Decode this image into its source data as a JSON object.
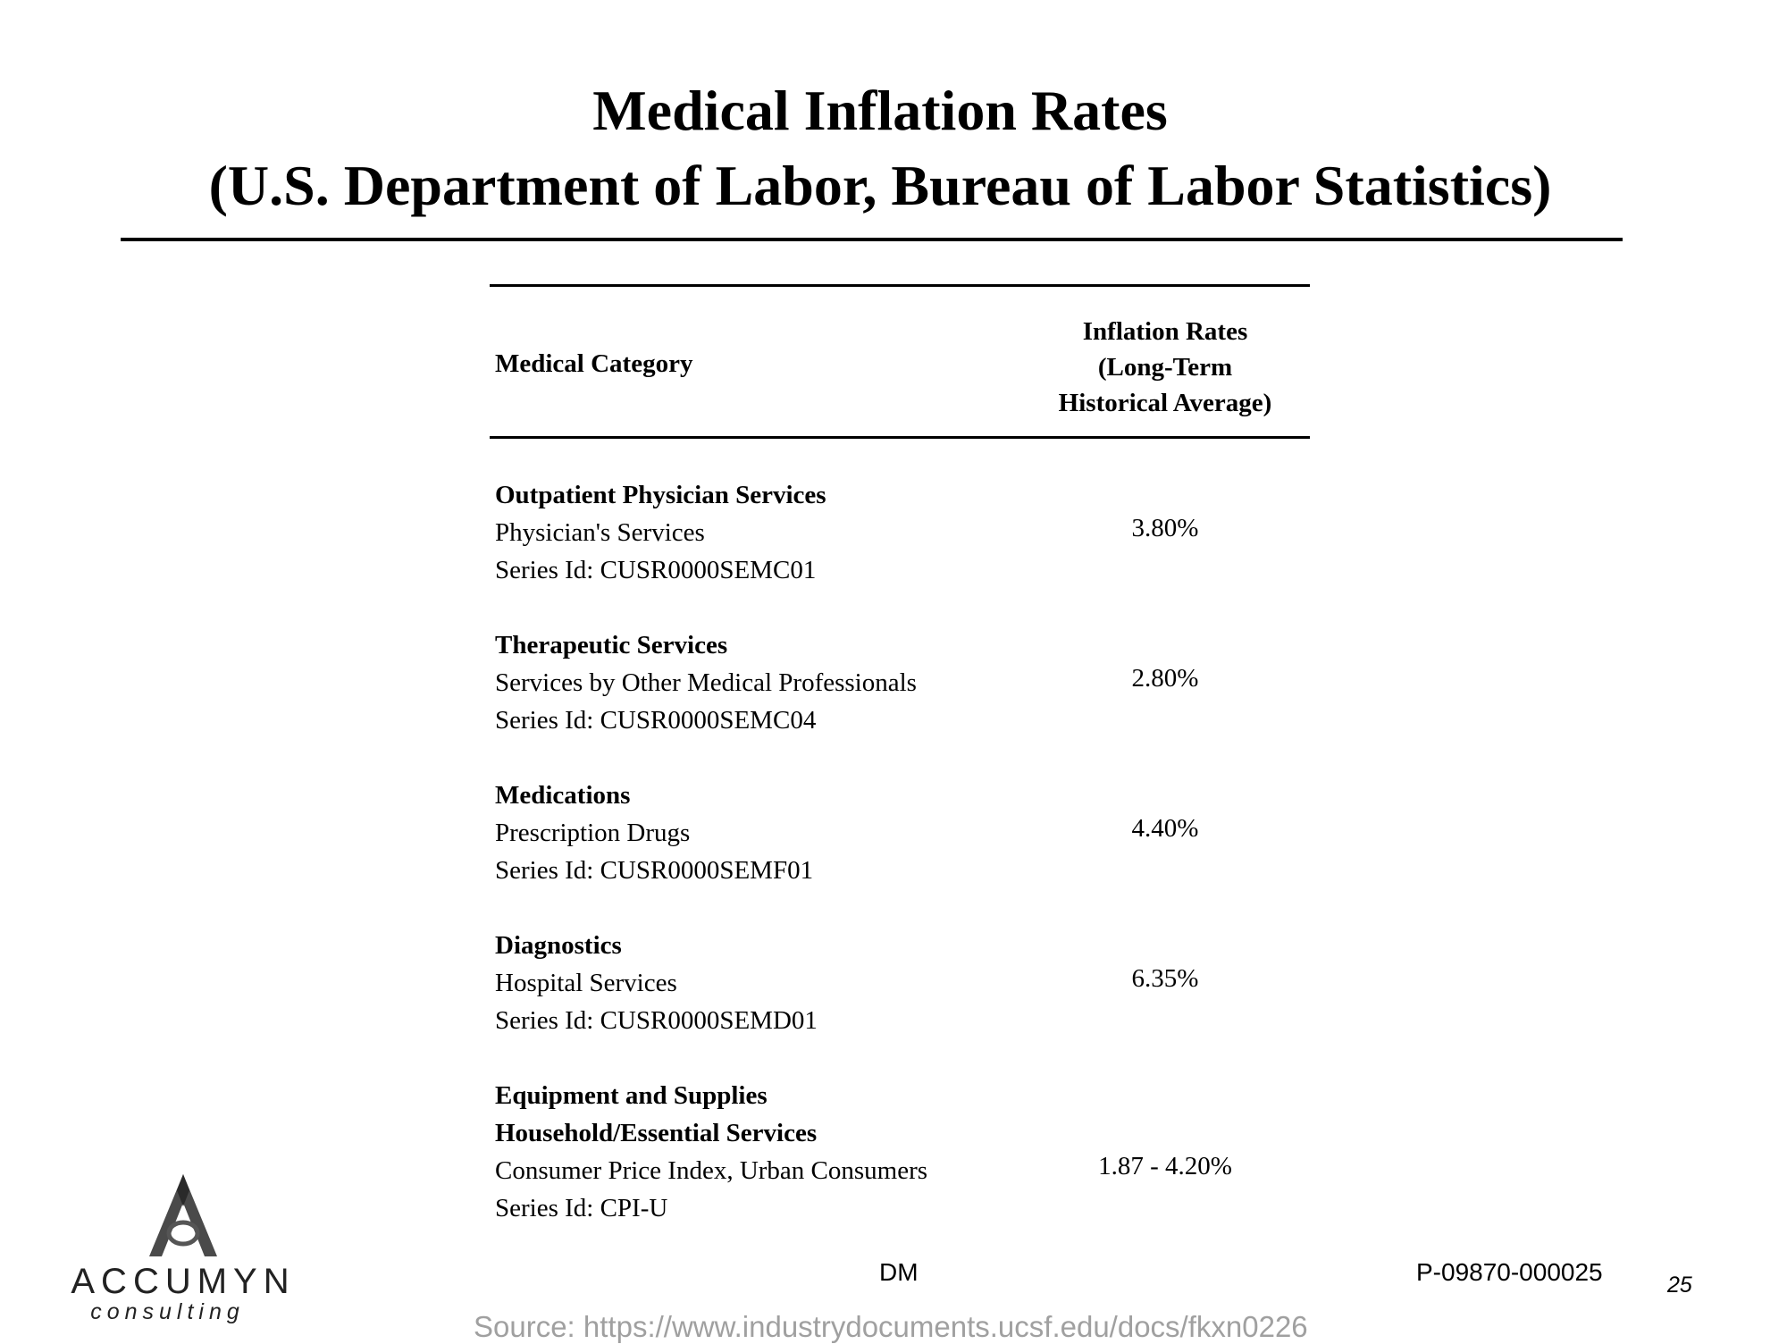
{
  "title": {
    "line1": "Medical Inflation Rates",
    "line2": "(U.S. Department of Labor, Bureau of Labor Statistics)"
  },
  "table": {
    "header": {
      "category": "Medical Category",
      "rate_line1": "Inflation Rates",
      "rate_line2": "(Long-Term",
      "rate_line3": "Historical Average)"
    },
    "rows": [
      {
        "title": "Outpatient Physician Services",
        "line1": "Physician's Services",
        "line2": "Series Id: CUSR0000SEMC01",
        "rate": "3.80%"
      },
      {
        "title": "Therapeutic Services",
        "line1": "Services by Other Medical Professionals",
        "line2": "Series Id: CUSR0000SEMC04",
        "rate": "2.80%"
      },
      {
        "title": "Medications",
        "line1": "Prescription Drugs",
        "line2": "Series Id: CUSR0000SEMF01",
        "rate": "4.40%"
      },
      {
        "title": "Diagnostics",
        "line1": "Hospital Services",
        "line2": "Series Id: CUSR0000SEMD01",
        "rate": "6.35%"
      },
      {
        "title": "Equipment and Supplies",
        "title2": "Household/Essential Services",
        "line1": "Consumer Price Index, Urban Consumers",
        "line2": "Series Id: CPI-U",
        "rate": "1.87 - 4.20%"
      }
    ]
  },
  "footer": {
    "dm": "DM",
    "code": "P-09870-000025",
    "page_number": "25",
    "source": "Source: https://www.industrydocuments.ucsf.edu/docs/fkxn0226"
  },
  "logo": {
    "name": "ACCUMYN",
    "sub": "consulting",
    "icon": "accumyn-logo-icon"
  }
}
